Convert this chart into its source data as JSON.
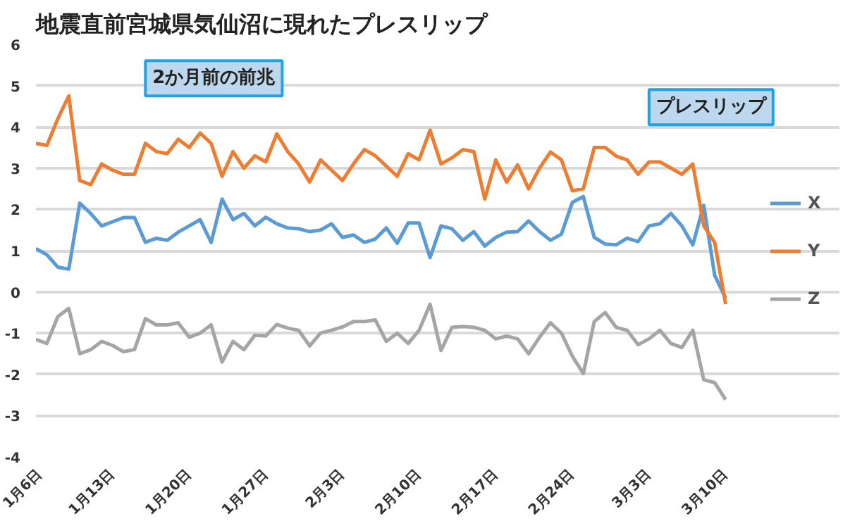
{
  "chart_data": {
    "type": "line",
    "title": "地震直前宮城県気仙沼に現れたプレスリップ",
    "categories": [
      "1月6日",
      null,
      null,
      null,
      null,
      null,
      null,
      "1月13日",
      null,
      null,
      null,
      null,
      null,
      null,
      "1月20日",
      null,
      null,
      null,
      null,
      null,
      null,
      "1月27日",
      null,
      null,
      null,
      null,
      null,
      null,
      "2月3日",
      null,
      null,
      null,
      null,
      null,
      null,
      "2月10日",
      null,
      null,
      null,
      null,
      null,
      null,
      "2月17日",
      null,
      null,
      null,
      null,
      null,
      null,
      "2月24日",
      null,
      null,
      null,
      null,
      null,
      null,
      "3月3日",
      null,
      null,
      null,
      null,
      null,
      null,
      "3月10日"
    ],
    "series": [
      {
        "name": "X",
        "color": "#5b9bd5",
        "values": [
          1.05,
          0.9,
          0.6,
          0.55,
          2.15,
          1.9,
          1.6,
          1.7,
          1.8,
          1.8,
          1.2,
          1.3,
          1.25,
          1.45,
          1.6,
          1.75,
          1.2,
          2.25,
          1.75,
          1.9,
          1.6,
          1.81,
          1.65,
          1.55,
          1.53,
          1.46,
          1.5,
          1.65,
          1.32,
          1.38,
          1.2,
          1.28,
          1.55,
          1.18,
          1.67,
          1.67,
          0.83,
          1.6,
          1.53,
          1.25,
          1.46,
          1.11,
          1.32,
          1.45,
          1.46,
          1.72,
          1.46,
          1.25,
          1.4,
          2.17,
          2.31,
          1.32,
          1.16,
          1.14,
          1.3,
          1.22,
          1.6,
          1.65,
          1.9,
          1.6,
          1.14,
          2.1,
          0.4,
          -0.15
        ]
      },
      {
        "name": "Y",
        "color": "#ed7d31",
        "values": [
          3.6,
          3.55,
          4.2,
          4.75,
          2.7,
          2.6,
          3.1,
          2.95,
          2.85,
          2.85,
          3.6,
          3.4,
          3.35,
          3.7,
          3.5,
          3.85,
          3.6,
          2.8,
          3.4,
          3.0,
          3.3,
          3.15,
          3.83,
          3.4,
          3.1,
          2.66,
          3.2,
          2.95,
          2.7,
          3.1,
          3.45,
          3.3,
          3.05,
          2.8,
          3.35,
          3.2,
          3.92,
          3.1,
          3.25,
          3.45,
          3.4,
          2.25,
          3.2,
          2.66,
          3.08,
          2.5,
          3.0,
          3.39,
          3.2,
          2.45,
          2.5,
          3.5,
          3.5,
          3.29,
          3.2,
          2.85,
          3.15,
          3.15,
          3.0,
          2.85,
          3.1,
          1.6,
          1.2,
          -0.3
        ]
      },
      {
        "name": "Z",
        "color": "#a5a5a5",
        "values": [
          -1.15,
          -1.25,
          -0.6,
          -0.4,
          -1.5,
          -1.4,
          -1.2,
          -1.3,
          -1.45,
          -1.4,
          -0.65,
          -0.8,
          -0.8,
          -0.75,
          -1.1,
          -1.0,
          -0.8,
          -1.7,
          -1.2,
          -1.4,
          -1.05,
          -1.07,
          -0.79,
          -0.88,
          -0.93,
          -1.31,
          -1.0,
          -0.93,
          -0.85,
          -0.72,
          -0.72,
          -0.68,
          -1.2,
          -1.0,
          -1.25,
          -0.93,
          -0.3,
          -1.42,
          -0.86,
          -0.84,
          -0.86,
          -0.93,
          -1.14,
          -1.07,
          -1.14,
          -1.5,
          -1.1,
          -0.75,
          -1.0,
          -1.56,
          -1.98,
          -0.72,
          -0.5,
          -0.86,
          -0.93,
          -1.28,
          -1.14,
          -0.93,
          -1.25,
          -1.35,
          -0.93,
          -2.13,
          -2.2,
          -2.61
        ]
      }
    ],
    "annotations": [
      "2か月前の前兆",
      "プレスリップ"
    ],
    "ylim": [
      -4,
      6
    ],
    "yticks": [
      -4,
      -3,
      -2,
      -1,
      0,
      1,
      2,
      3,
      4,
      5,
      6
    ],
    "grid": "y",
    "legend": "right",
    "marker": "none",
    "line_style": "solid"
  }
}
